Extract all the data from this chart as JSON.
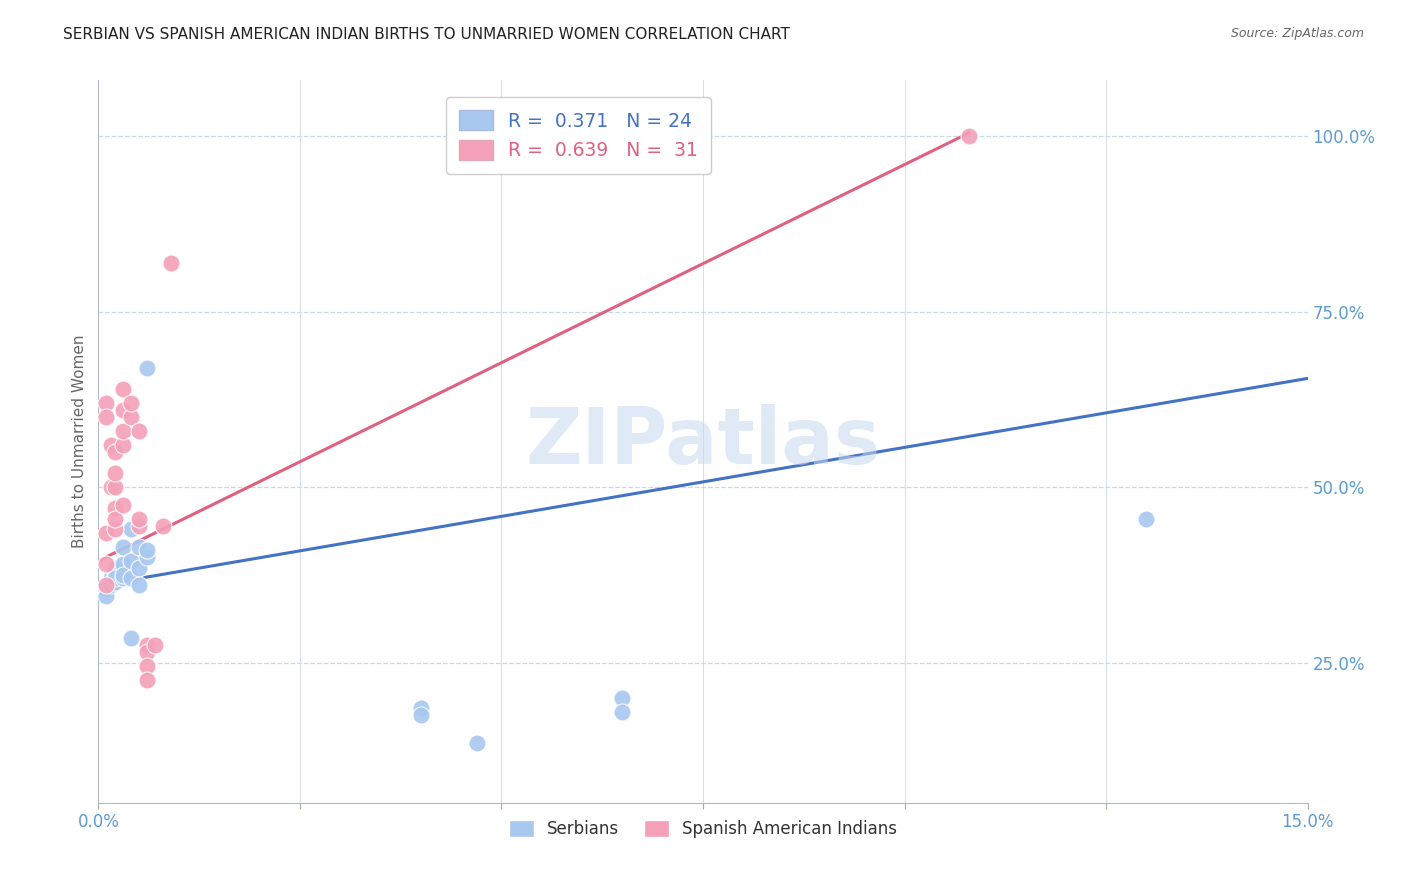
{
  "title": "SERBIAN VS SPANISH AMERICAN INDIAN BIRTHS TO UNMARRIED WOMEN CORRELATION CHART",
  "source": "Source: ZipAtlas.com",
  "ylabel": "Births to Unmarried Women",
  "watermark": "ZIPatlas",
  "legend_label_serbian": "Serbians",
  "legend_label_spanish": "Spanish American Indians",
  "serbian_color": "#a8c8f0",
  "spanish_color": "#f4a0b8",
  "serbian_line_color": "#4472c4",
  "spanish_line_color": "#e06080",
  "serbian_scatter": [
    [
      0.001,
      0.355
    ],
    [
      0.001,
      0.345
    ],
    [
      0.0015,
      0.37
    ],
    [
      0.0015,
      0.36
    ],
    [
      0.002,
      0.375
    ],
    [
      0.002,
      0.365
    ],
    [
      0.002,
      0.385
    ],
    [
      0.002,
      0.37
    ],
    [
      0.003,
      0.37
    ],
    [
      0.003,
      0.39
    ],
    [
      0.003,
      0.415
    ],
    [
      0.003,
      0.375
    ],
    [
      0.004,
      0.395
    ],
    [
      0.004,
      0.37
    ],
    [
      0.004,
      0.44
    ],
    [
      0.004,
      0.285
    ],
    [
      0.005,
      0.385
    ],
    [
      0.005,
      0.36
    ],
    [
      0.005,
      0.415
    ],
    [
      0.006,
      0.67
    ],
    [
      0.006,
      0.4
    ],
    [
      0.006,
      0.41
    ],
    [
      0.04,
      0.185
    ],
    [
      0.04,
      0.175
    ],
    [
      0.047,
      0.135
    ],
    [
      0.065,
      0.2
    ],
    [
      0.065,
      0.18
    ],
    [
      0.13,
      0.455
    ]
  ],
  "spanish_scatter": [
    [
      0.001,
      0.435
    ],
    [
      0.001,
      0.39
    ],
    [
      0.001,
      0.36
    ],
    [
      0.001,
      0.62
    ],
    [
      0.001,
      0.6
    ],
    [
      0.0015,
      0.56
    ],
    [
      0.0015,
      0.5
    ],
    [
      0.002,
      0.5
    ],
    [
      0.002,
      0.55
    ],
    [
      0.002,
      0.52
    ],
    [
      0.002,
      0.44
    ],
    [
      0.002,
      0.47
    ],
    [
      0.002,
      0.455
    ],
    [
      0.003,
      0.475
    ],
    [
      0.003,
      0.61
    ],
    [
      0.003,
      0.64
    ],
    [
      0.003,
      0.56
    ],
    [
      0.003,
      0.58
    ],
    [
      0.004,
      0.6
    ],
    [
      0.004,
      0.62
    ],
    [
      0.005,
      0.445
    ],
    [
      0.005,
      0.455
    ],
    [
      0.005,
      0.58
    ],
    [
      0.006,
      0.275
    ],
    [
      0.006,
      0.265
    ],
    [
      0.006,
      0.245
    ],
    [
      0.006,
      0.225
    ],
    [
      0.007,
      0.275
    ],
    [
      0.008,
      0.445
    ],
    [
      0.009,
      0.82
    ],
    [
      0.108,
      1.0
    ]
  ],
  "serbian_trendline": [
    [
      0.0,
      0.36
    ],
    [
      0.15,
      0.655
    ]
  ],
  "spanish_trendline": [
    [
      0.0,
      0.395
    ],
    [
      0.108,
      1.005
    ]
  ],
  "xlim": [
    0.0,
    0.15
  ],
  "ylim": [
    0.05,
    1.08
  ],
  "yticks": [
    0.25,
    0.5,
    0.75,
    1.0
  ],
  "ytick_labels": [
    "25.0%",
    "50.0%",
    "75.0%",
    "100.0%"
  ],
  "xtick_positions": [
    0.0,
    0.025,
    0.05,
    0.075,
    0.1,
    0.125,
    0.15
  ],
  "xtick_labels_show": [
    true,
    false,
    false,
    false,
    false,
    false,
    true
  ],
  "grid_color": "#c8d8ec",
  "background_color": "#ffffff",
  "title_fontsize": 11,
  "tick_label_color": "#5b9bd5",
  "tick_label_fontsize": 12
}
